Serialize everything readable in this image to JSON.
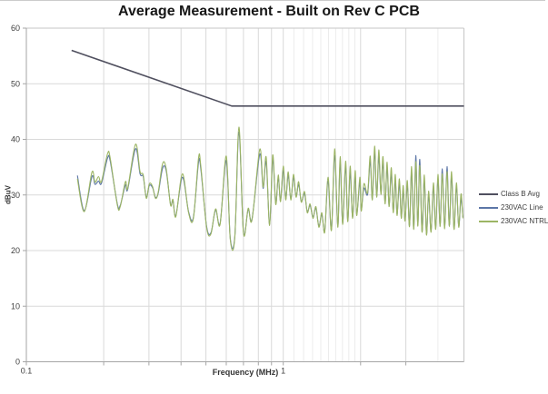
{
  "title": "Average Measurement - Built on Rev C PCB",
  "legend": {
    "items": [
      {
        "label": "Class B Avg",
        "color": "#50505f"
      },
      {
        "label": "230VAC Line",
        "color": "#5c76a7"
      },
      {
        "label": "230VAC NTRL",
        "color": "#9cb564"
      }
    ]
  },
  "colors": {
    "grid": "#d9d9d9",
    "grid_minor": "#ececec",
    "axis": "#a6a6a6",
    "plot_border": "#c6c6c6",
    "tick_text": "#404040",
    "title_text": "#171717"
  },
  "chart_data": {
    "type": "line",
    "title": "Average Measurement - Built on Rev C PCB",
    "xlabel": "Frequency (MHz)",
    "ylabel": "dBuV",
    "xscale": "log",
    "xlim": [
      0.1,
      5.05
    ],
    "ylim": [
      0,
      60
    ],
    "y_ticks": [
      0,
      10,
      20,
      30,
      40,
      50,
      60
    ],
    "x_tick_labels": [
      {
        "value": 0.1,
        "label": "0.1"
      },
      {
        "value": 1,
        "label": "1"
      }
    ],
    "x_tick_marks": [
      0.1,
      0.2,
      0.3,
      0.4,
      0.5,
      0.6,
      0.7,
      0.8,
      0.9,
      1,
      2,
      3
    ],
    "x_gridlines": [
      0.2,
      0.3,
      0.4,
      0.5,
      0.6,
      0.7,
      0.8,
      0.9,
      1,
      2,
      3
    ],
    "x_gridlines_minor": [
      1.1,
      1.2,
      1.3,
      1.4,
      1.5,
      1.6,
      1.7,
      1.8,
      1.9,
      4
    ],
    "grid": true,
    "legend_position": "right",
    "series": [
      {
        "name": "Class B Avg",
        "color": "#50505f",
        "width": 1.6,
        "points": [
          [
            0.15,
            56
          ],
          [
            0.63,
            46
          ],
          [
            5.05,
            46
          ]
        ]
      },
      {
        "name": "230VAC Line",
        "color": "#5c76a7",
        "width": 1.1,
        "points": [
          [
            0.158,
            33.5
          ],
          [
            0.168,
            27.2
          ],
          [
            0.18,
            33.3
          ],
          [
            0.185,
            31.9
          ],
          [
            0.191,
            32.5
          ],
          [
            0.196,
            32.1
          ],
          [
            0.207,
            36.6
          ],
          [
            0.212,
            36.1
          ],
          [
            0.226,
            28.4
          ],
          [
            0.232,
            28.1
          ],
          [
            0.243,
            31.8
          ],
          [
            0.248,
            31.0
          ],
          [
            0.266,
            38.3
          ],
          [
            0.277,
            33.8
          ],
          [
            0.285,
            33.3
          ],
          [
            0.293,
            29.6
          ],
          [
            0.301,
            31.7
          ],
          [
            0.31,
            31.3
          ],
          [
            0.318,
            29.6
          ],
          [
            0.326,
            30.3
          ],
          [
            0.339,
            34.8
          ],
          [
            0.35,
            34.4
          ],
          [
            0.364,
            28.4
          ],
          [
            0.372,
            29.0
          ],
          [
            0.382,
            26.3
          ],
          [
            0.405,
            33.2
          ],
          [
            0.428,
            27.0
          ],
          [
            0.447,
            26.0
          ],
          [
            0.468,
            35.9
          ],
          [
            0.478,
            34.5
          ],
          [
            0.503,
            24.4
          ],
          [
            0.523,
            23.2
          ],
          [
            0.545,
            27.3
          ],
          [
            0.568,
            24.9
          ],
          [
            0.6,
            36.2
          ],
          [
            0.622,
            22.2
          ],
          [
            0.648,
            22.6
          ],
          [
            0.672,
            41.3
          ],
          [
            0.7,
            23.3
          ],
          [
            0.73,
            27.4
          ],
          [
            0.756,
            25.7
          ],
          [
            0.81,
            37.3
          ],
          [
            0.835,
            31.2
          ],
          [
            0.858,
            36.0
          ],
          [
            0.885,
            24.7
          ],
          [
            0.91,
            36.4
          ],
          [
            0.935,
            28.5
          ],
          [
            0.956,
            33.1
          ],
          [
            0.976,
            29.0
          ],
          [
            1.0,
            34.4
          ],
          [
            1.022,
            29.3
          ],
          [
            1.045,
            33.5
          ],
          [
            1.07,
            29.3
          ],
          [
            1.096,
            33.1
          ],
          [
            1.122,
            29.8
          ],
          [
            1.148,
            31.9
          ],
          [
            1.175,
            28.9
          ],
          [
            1.21,
            30.2
          ],
          [
            1.24,
            27.0
          ],
          [
            1.272,
            28.1
          ],
          [
            1.305,
            26.0
          ],
          [
            1.34,
            27.6
          ],
          [
            1.376,
            24.4
          ],
          [
            1.413,
            26.5
          ],
          [
            1.45,
            23.5
          ],
          [
            1.494,
            32.5
          ],
          [
            1.54,
            23.8
          ],
          [
            1.585,
            37.1
          ],
          [
            1.63,
            24.4
          ],
          [
            1.665,
            35.8
          ],
          [
            1.702,
            24.9
          ],
          [
            1.748,
            35.0
          ],
          [
            1.782,
            25.4
          ],
          [
            1.822,
            34.1
          ],
          [
            1.86,
            26.0
          ],
          [
            1.905,
            33.4
          ],
          [
            1.932,
            26.5
          ],
          [
            1.988,
            32.3
          ],
          [
            2.012,
            27.3
          ],
          [
            2.06,
            31.2
          ],
          [
            2.13,
            30.1
          ],
          [
            2.18,
            36.1
          ],
          [
            2.222,
            29.3
          ],
          [
            2.267,
            37.6
          ],
          [
            2.31,
            29.8
          ],
          [
            2.355,
            36.9
          ],
          [
            2.4,
            30.3
          ],
          [
            2.444,
            35.8
          ],
          [
            2.49,
            28.6
          ],
          [
            2.537,
            35.0
          ],
          [
            2.582,
            28.1
          ],
          [
            2.634,
            34.0
          ],
          [
            2.68,
            27.0
          ],
          [
            2.73,
            32.8
          ],
          [
            2.772,
            26.5
          ],
          [
            2.832,
            32.0
          ],
          [
            2.88,
            26.0
          ],
          [
            2.93,
            30.9
          ],
          [
            2.98,
            25.5
          ],
          [
            3.04,
            31.8
          ],
          [
            3.1,
            24.5
          ],
          [
            3.16,
            34.3
          ],
          [
            3.22,
            24.0
          ],
          [
            3.28,
            37.1
          ],
          [
            3.34,
            24.6
          ],
          [
            3.4,
            36.4
          ],
          [
            3.47,
            23.5
          ],
          [
            3.54,
            32.9
          ],
          [
            3.61,
            23.0
          ],
          [
            3.68,
            29.9
          ],
          [
            3.76,
            23.5
          ],
          [
            3.84,
            31.4
          ],
          [
            3.92,
            24.0
          ],
          [
            4.0,
            32.9
          ],
          [
            4.08,
            24.5
          ],
          [
            4.16,
            34.7
          ],
          [
            4.25,
            24.1
          ],
          [
            4.34,
            35.1
          ],
          [
            4.43,
            24.5
          ],
          [
            4.52,
            33.4
          ],
          [
            4.62,
            24.0
          ],
          [
            4.72,
            31.4
          ],
          [
            4.82,
            24.4
          ],
          [
            4.92,
            29.4
          ],
          [
            5.0,
            26.0
          ]
        ]
      },
      {
        "name": "230VAC NTRL",
        "color": "#9cb564",
        "width": 1.1,
        "points": [
          [
            0.158,
            32.9
          ],
          [
            0.168,
            27.0
          ],
          [
            0.18,
            34.1
          ],
          [
            0.185,
            32.3
          ],
          [
            0.191,
            33.3
          ],
          [
            0.196,
            32.4
          ],
          [
            0.207,
            37.4
          ],
          [
            0.212,
            36.6
          ],
          [
            0.226,
            28.2
          ],
          [
            0.232,
            27.9
          ],
          [
            0.243,
            32.4
          ],
          [
            0.248,
            31.2
          ],
          [
            0.266,
            39.1
          ],
          [
            0.277,
            34.2
          ],
          [
            0.285,
            33.6
          ],
          [
            0.293,
            29.4
          ],
          [
            0.301,
            32.0
          ],
          [
            0.31,
            31.5
          ],
          [
            0.318,
            29.4
          ],
          [
            0.326,
            30.5
          ],
          [
            0.339,
            35.6
          ],
          [
            0.35,
            34.8
          ],
          [
            0.364,
            28.2
          ],
          [
            0.372,
            29.2
          ],
          [
            0.382,
            26.1
          ],
          [
            0.405,
            33.8
          ],
          [
            0.428,
            26.8
          ],
          [
            0.447,
            25.8
          ],
          [
            0.468,
            36.7
          ],
          [
            0.478,
            35.0
          ],
          [
            0.503,
            24.2
          ],
          [
            0.523,
            23.0
          ],
          [
            0.545,
            27.5
          ],
          [
            0.568,
            24.7
          ],
          [
            0.6,
            37.0
          ],
          [
            0.622,
            22.0
          ],
          [
            0.648,
            22.4
          ],
          [
            0.672,
            42.2
          ],
          [
            0.7,
            23.1
          ],
          [
            0.73,
            27.6
          ],
          [
            0.756,
            25.5
          ],
          [
            0.81,
            38.2
          ],
          [
            0.835,
            31.4
          ],
          [
            0.858,
            36.8
          ],
          [
            0.885,
            24.5
          ],
          [
            0.91,
            37.2
          ],
          [
            0.935,
            28.3
          ],
          [
            0.956,
            33.6
          ],
          [
            0.976,
            28.8
          ],
          [
            1.0,
            35.2
          ],
          [
            1.022,
            29.1
          ],
          [
            1.045,
            34.2
          ],
          [
            1.07,
            29.1
          ],
          [
            1.096,
            33.7
          ],
          [
            1.122,
            29.6
          ],
          [
            1.148,
            32.4
          ],
          [
            1.175,
            28.7
          ],
          [
            1.21,
            30.6
          ],
          [
            1.24,
            26.8
          ],
          [
            1.272,
            28.4
          ],
          [
            1.305,
            25.8
          ],
          [
            1.34,
            27.9
          ],
          [
            1.376,
            24.2
          ],
          [
            1.413,
            26.8
          ],
          [
            1.45,
            23.3
          ],
          [
            1.494,
            33.2
          ],
          [
            1.54,
            23.6
          ],
          [
            1.585,
            38.3
          ],
          [
            1.63,
            24.2
          ],
          [
            1.665,
            36.9
          ],
          [
            1.702,
            24.7
          ],
          [
            1.748,
            36.1
          ],
          [
            1.782,
            25.2
          ],
          [
            1.822,
            35.2
          ],
          [
            1.86,
            25.8
          ],
          [
            1.905,
            34.4
          ],
          [
            1.932,
            26.3
          ],
          [
            1.988,
            33.2
          ],
          [
            2.012,
            27.1
          ],
          [
            2.06,
            32.0
          ],
          [
            2.13,
            30.4
          ],
          [
            2.18,
            37.0
          ],
          [
            2.222,
            29.1
          ],
          [
            2.267,
            38.8
          ],
          [
            2.31,
            29.6
          ],
          [
            2.355,
            38.1
          ],
          [
            2.4,
            30.1
          ],
          [
            2.444,
            36.9
          ],
          [
            2.49,
            28.4
          ],
          [
            2.537,
            35.9
          ],
          [
            2.582,
            27.9
          ],
          [
            2.634,
            34.9
          ],
          [
            2.68,
            26.8
          ],
          [
            2.73,
            33.7
          ],
          [
            2.772,
            26.3
          ],
          [
            2.832,
            32.9
          ],
          [
            2.88,
            25.8
          ],
          [
            2.93,
            31.7
          ],
          [
            2.98,
            25.3
          ],
          [
            3.04,
            32.6
          ],
          [
            3.1,
            24.3
          ],
          [
            3.16,
            35.1
          ],
          [
            3.22,
            23.8
          ],
          [
            3.28,
            36.0
          ],
          [
            3.34,
            24.4
          ],
          [
            3.4,
            35.3
          ],
          [
            3.47,
            23.3
          ],
          [
            3.54,
            33.6
          ],
          [
            3.61,
            22.8
          ],
          [
            3.68,
            30.7
          ],
          [
            3.76,
            23.3
          ],
          [
            3.84,
            32.2
          ],
          [
            3.92,
            23.8
          ],
          [
            4.0,
            33.7
          ],
          [
            4.08,
            24.3
          ],
          [
            4.16,
            33.8
          ],
          [
            4.25,
            23.9
          ],
          [
            4.34,
            34.2
          ],
          [
            4.43,
            24.3
          ],
          [
            4.52,
            34.2
          ],
          [
            4.62,
            23.8
          ],
          [
            4.72,
            32.2
          ],
          [
            4.82,
            24.2
          ],
          [
            4.92,
            30.2
          ],
          [
            5.0,
            25.8
          ]
        ]
      }
    ]
  }
}
